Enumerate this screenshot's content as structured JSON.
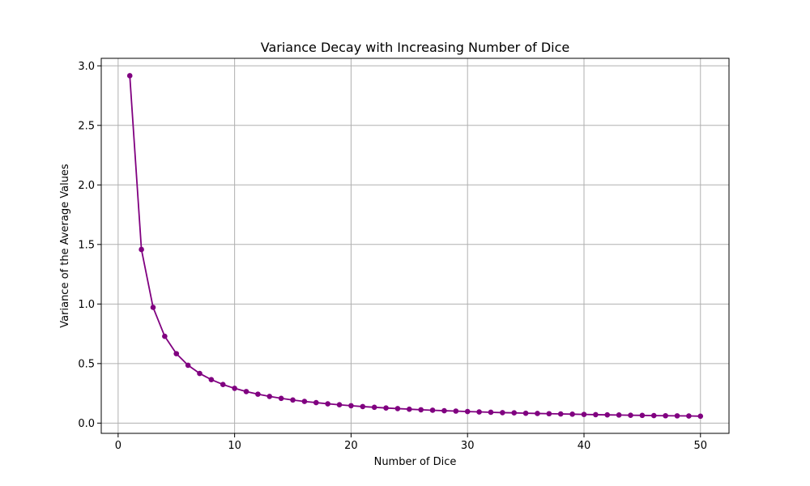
{
  "chart_data": {
    "type": "line",
    "title": "Variance Decay with Increasing Number of Dice",
    "xlabel": "Number of Dice",
    "ylabel": "Variance of the Average Values",
    "xlim": [
      -1.45,
      52.45
    ],
    "ylim": [
      -0.086,
      3.063
    ],
    "xticks": [
      0,
      10,
      20,
      30,
      40,
      50
    ],
    "yticks": [
      0.0,
      0.5,
      1.0,
      1.5,
      2.0,
      2.5,
      3.0
    ],
    "xtick_labels": [
      "0",
      "10",
      "20",
      "30",
      "40",
      "50"
    ],
    "ytick_labels": [
      "0.0",
      "0.5",
      "1.0",
      "1.5",
      "2.0",
      "2.5",
      "3.0"
    ],
    "grid": true,
    "line_color": "#800080",
    "marker": "circle",
    "series": [
      {
        "x": [
          1,
          2,
          3,
          4,
          5,
          6,
          7,
          8,
          9,
          10,
          11,
          12,
          13,
          14,
          15,
          16,
          17,
          18,
          19,
          20,
          21,
          22,
          23,
          24,
          25,
          26,
          27,
          28,
          29,
          30,
          31,
          32,
          33,
          34,
          35,
          36,
          37,
          38,
          39,
          40,
          41,
          42,
          43,
          44,
          45,
          46,
          47,
          48,
          49,
          50
        ],
        "y": [
          2.917,
          1.458,
          0.972,
          0.729,
          0.583,
          0.486,
          0.417,
          0.365,
          0.324,
          0.292,
          0.265,
          0.243,
          0.224,
          0.208,
          0.194,
          0.182,
          0.172,
          0.162,
          0.154,
          0.146,
          0.139,
          0.133,
          0.127,
          0.122,
          0.117,
          0.112,
          0.108,
          0.104,
          0.101,
          0.097,
          0.094,
          0.091,
          0.088,
          0.086,
          0.083,
          0.081,
          0.079,
          0.077,
          0.075,
          0.073,
          0.071,
          0.069,
          0.068,
          0.066,
          0.065,
          0.063,
          0.062,
          0.061,
          0.06,
          0.058
        ]
      }
    ]
  }
}
